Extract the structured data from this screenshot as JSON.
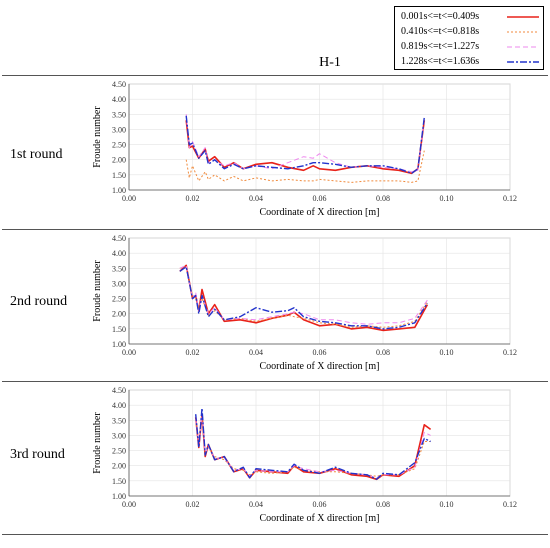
{
  "title": "H-1",
  "legend": [
    {
      "label": "0.001s<=t<=0.409s",
      "color": "#e8221a",
      "dash": "",
      "width": 1.6
    },
    {
      "label": "0.410s<=t<=0.818s",
      "color": "#f08a3c",
      "dash": "2,2",
      "width": 1.0
    },
    {
      "label": "0.819s<=t<=1.227s",
      "color": "#ee88ee",
      "dash": "5,3",
      "width": 1.0
    },
    {
      "label": "1.228s<=t<=1.636s",
      "color": "#2233cc",
      "dash": "7,2,2,2",
      "width": 1.4
    }
  ],
  "chart_data": [
    {
      "type": "line",
      "round_label": "1st round",
      "xlabel": "Coordinate of X direction [m]",
      "ylabel": "Froude number",
      "xlim": [
        0,
        0.12
      ],
      "ylim": [
        1.0,
        4.5
      ],
      "xticks": [
        "0.00",
        "0.02",
        "0.04",
        "0.06",
        "0.08",
        "0.10",
        "0.12"
      ],
      "yticks": [
        "1.00",
        "1.50",
        "2.00",
        "2.50",
        "3.00",
        "3.50",
        "4.00",
        "4.50"
      ],
      "x": [
        0.018,
        0.019,
        0.02,
        0.022,
        0.024,
        0.025,
        0.027,
        0.03,
        0.033,
        0.036,
        0.04,
        0.045,
        0.05,
        0.055,
        0.058,
        0.06,
        0.065,
        0.07,
        0.075,
        0.08,
        0.085,
        0.089,
        0.091,
        0.093
      ],
      "series": [
        {
          "name": "0.001s<=t<=0.409s",
          "values": [
            3.3,
            2.4,
            2.45,
            2.05,
            2.35,
            1.95,
            2.1,
            1.75,
            1.9,
            1.7,
            1.85,
            1.9,
            1.75,
            1.65,
            1.8,
            1.7,
            1.65,
            1.75,
            1.8,
            1.7,
            1.65,
            1.55,
            1.7,
            3.3
          ]
        },
        {
          "name": "0.410s<=t<=0.818s",
          "values": [
            2.0,
            1.4,
            1.8,
            1.3,
            1.6,
            1.35,
            1.5,
            1.3,
            1.45,
            1.3,
            1.4,
            1.3,
            1.35,
            1.3,
            1.3,
            1.35,
            1.3,
            1.25,
            1.3,
            1.3,
            1.3,
            1.25,
            1.3,
            2.3
          ]
        },
        {
          "name": "0.819s<=t<=1.227s",
          "values": [
            3.5,
            2.4,
            2.6,
            2.1,
            2.4,
            1.9,
            2.0,
            1.8,
            1.9,
            1.7,
            1.8,
            1.7,
            1.9,
            2.1,
            2.05,
            2.2,
            1.9,
            1.75,
            1.8,
            1.75,
            1.7,
            1.6,
            1.65,
            3.35
          ]
        },
        {
          "name": "1.228s<=t<=1.636s",
          "values": [
            3.45,
            2.5,
            2.55,
            2.05,
            2.3,
            1.85,
            2.0,
            1.7,
            1.85,
            1.7,
            1.8,
            1.75,
            1.7,
            1.8,
            1.9,
            1.9,
            1.85,
            1.75,
            1.8,
            1.8,
            1.7,
            1.55,
            1.7,
            3.4
          ]
        }
      ]
    },
    {
      "type": "line",
      "round_label": "2nd round",
      "xlabel": "Coordinate of X direction [m]",
      "ylabel": "Froude number",
      "xlim": [
        0,
        0.12
      ],
      "ylim": [
        1.0,
        4.5
      ],
      "xticks": [
        "0.00",
        "0.02",
        "0.04",
        "0.06",
        "0.08",
        "0.10",
        "0.12"
      ],
      "yticks": [
        "1.00",
        "1.50",
        "2.00",
        "2.50",
        "3.00",
        "3.50",
        "4.00",
        "4.50"
      ],
      "x": [
        0.016,
        0.018,
        0.02,
        0.021,
        0.022,
        0.023,
        0.025,
        0.027,
        0.03,
        0.035,
        0.04,
        0.045,
        0.05,
        0.052,
        0.055,
        0.06,
        0.065,
        0.07,
        0.075,
        0.08,
        0.085,
        0.09,
        0.094
      ],
      "series": [
        {
          "name": "0.001s<=t<=0.409s",
          "values": [
            3.4,
            3.6,
            2.5,
            2.6,
            2.1,
            2.8,
            2.0,
            2.3,
            1.75,
            1.8,
            1.7,
            1.85,
            1.95,
            2.05,
            1.8,
            1.6,
            1.65,
            1.5,
            1.55,
            1.45,
            1.5,
            1.55,
            2.3
          ]
        },
        {
          "name": "0.410s<=t<=0.818s",
          "values": [
            3.5,
            3.55,
            2.6,
            2.5,
            2.2,
            2.5,
            1.95,
            2.1,
            1.8,
            1.85,
            1.75,
            1.85,
            1.95,
            1.9,
            1.85,
            1.7,
            1.65,
            1.55,
            1.6,
            1.55,
            1.6,
            1.75,
            2.4
          ]
        },
        {
          "name": "0.819s<=t<=1.227s",
          "values": [
            3.5,
            3.6,
            2.5,
            2.7,
            2.1,
            2.6,
            2.0,
            2.2,
            1.8,
            1.85,
            1.8,
            1.9,
            2.0,
            2.05,
            2.0,
            1.8,
            1.8,
            1.7,
            1.65,
            1.7,
            1.7,
            1.85,
            2.45
          ]
        },
        {
          "name": "1.228s<=t<=1.636s",
          "values": [
            3.4,
            3.55,
            2.5,
            2.6,
            2.0,
            2.6,
            1.9,
            2.15,
            1.8,
            1.9,
            2.2,
            2.05,
            2.1,
            2.2,
            1.9,
            1.75,
            1.7,
            1.6,
            1.6,
            1.5,
            1.55,
            1.7,
            2.35
          ]
        }
      ]
    },
    {
      "type": "line",
      "round_label": "3rd round",
      "xlabel": "Coordinate of X direction [m]",
      "ylabel": "Froude number",
      "xlim": [
        0,
        0.12
      ],
      "ylim": [
        1.0,
        4.5
      ],
      "xticks": [
        "0.00",
        "0.02",
        "0.04",
        "0.06",
        "0.08",
        "0.10",
        "0.12"
      ],
      "yticks": [
        "1.00",
        "1.50",
        "2.00",
        "2.50",
        "3.00",
        "3.50",
        "4.00",
        "4.50"
      ],
      "x": [
        0.021,
        0.022,
        0.023,
        0.024,
        0.025,
        0.027,
        0.03,
        0.033,
        0.036,
        0.038,
        0.04,
        0.045,
        0.05,
        0.052,
        0.055,
        0.06,
        0.065,
        0.07,
        0.075,
        0.078,
        0.08,
        0.085,
        0.09,
        0.093,
        0.095
      ],
      "series": [
        {
          "name": "0.001s<=t<=0.409s",
          "values": [
            3.6,
            2.6,
            3.7,
            2.3,
            2.7,
            2.2,
            2.3,
            1.8,
            1.9,
            1.6,
            1.85,
            1.8,
            1.75,
            2.0,
            1.8,
            1.75,
            1.9,
            1.7,
            1.65,
            1.55,
            1.7,
            1.65,
            2.0,
            3.35,
            3.2
          ]
        },
        {
          "name": "0.410s<=t<=0.818s",
          "values": [
            3.5,
            2.8,
            3.6,
            2.4,
            2.6,
            2.3,
            2.2,
            1.9,
            1.85,
            1.7,
            1.8,
            1.75,
            1.8,
            1.95,
            1.85,
            1.8,
            1.8,
            1.75,
            1.7,
            1.65,
            1.7,
            1.7,
            1.9,
            2.8,
            2.8
          ]
        },
        {
          "name": "0.819s<=t<=1.227s",
          "values": [
            3.55,
            2.7,
            3.7,
            2.4,
            2.65,
            2.25,
            2.25,
            1.85,
            1.9,
            1.65,
            1.85,
            1.8,
            1.8,
            2.0,
            1.9,
            1.8,
            1.85,
            1.75,
            1.7,
            1.6,
            1.7,
            1.7,
            1.95,
            3.1,
            3.0
          ]
        },
        {
          "name": "1.228s<=t<=1.636s",
          "values": [
            3.7,
            2.6,
            3.9,
            2.35,
            2.7,
            2.2,
            2.3,
            1.8,
            1.95,
            1.6,
            1.9,
            1.85,
            1.8,
            2.05,
            1.85,
            1.75,
            1.95,
            1.75,
            1.7,
            1.55,
            1.75,
            1.7,
            2.1,
            2.9,
            2.8
          ]
        }
      ]
    }
  ]
}
